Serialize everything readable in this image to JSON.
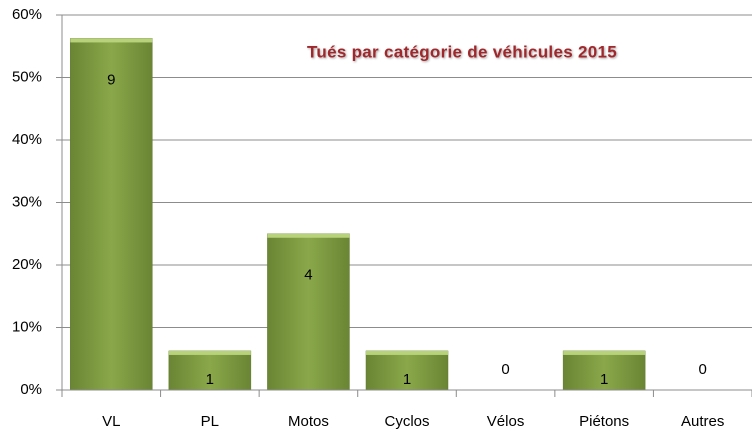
{
  "chart_data": {
    "type": "bar",
    "title": "Tués  par catégorie de véhicules 2015",
    "categories": [
      "VL",
      "PL",
      "Motos",
      "Cyclos",
      "Vélos",
      "Piétons",
      "Autres"
    ],
    "values": [
      56.25,
      6.25,
      25,
      6.25,
      0,
      6.25,
      0
    ],
    "data_labels": [
      9,
      1,
      4,
      1,
      0,
      1,
      0
    ],
    "color": "#77933c",
    "ylim": [
      0,
      60
    ],
    "yticks": [
      {
        "value": 0,
        "label": "0%"
      },
      {
        "value": 10,
        "label": "10%"
      },
      {
        "value": 20,
        "label": "20%"
      },
      {
        "value": 30,
        "label": "30%"
      },
      {
        "value": 40,
        "label": "40%"
      },
      {
        "value": 50,
        "label": "50%"
      },
      {
        "value": 60,
        "label": "60%"
      }
    ],
    "grid": true
  }
}
